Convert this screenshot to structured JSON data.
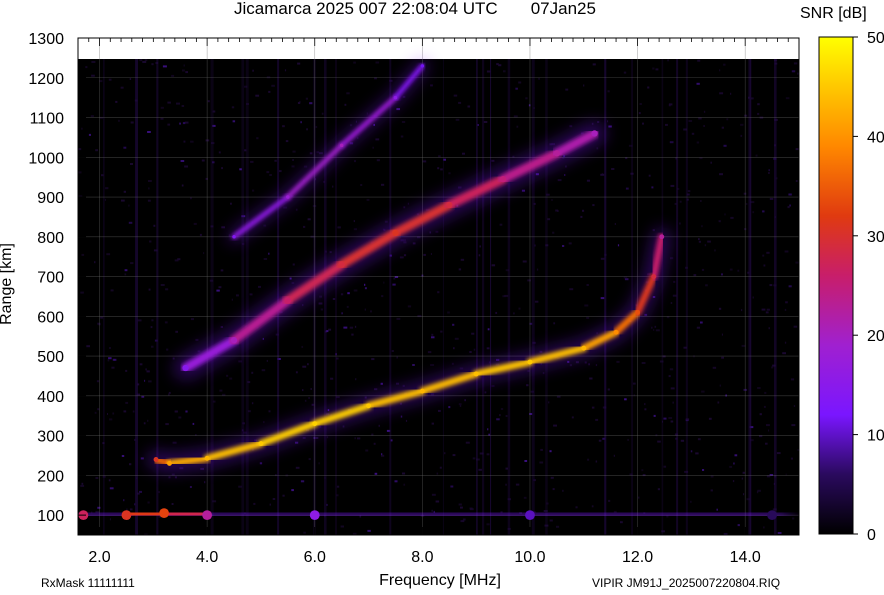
{
  "header": {
    "title": "Jicamarca 2025 007 22:08:04 UTC       07Jan25",
    "colorbar_title": "SNR [dB]",
    "rxmask": "RxMask 11111111",
    "source_file": "VIPIR  JM91J_2025007220804.RIQ"
  },
  "chart_data": {
    "type": "heatmap",
    "title": "Jicamarca 2025 007 22:08:04 UTC       07Jan25",
    "xlabel": "Frequency [MHz]",
    "ylabel": "Range [km]",
    "xlim": [
      1.6,
      15.0
    ],
    "ylim": [
      50,
      1300
    ],
    "x_ticks": [
      2.0,
      4.0,
      6.0,
      8.0,
      10.0,
      12.0,
      14.0
    ],
    "x_tick_labels": [
      "2.0",
      "4.0",
      "6.0",
      "8.0",
      "10.0",
      "12.0",
      "14.0"
    ],
    "y_ticks": [
      100,
      200,
      300,
      400,
      500,
      600,
      700,
      800,
      900,
      1000,
      1100,
      1200,
      1300
    ],
    "y_tick_labels": [
      "100",
      "200",
      "300",
      "400",
      "500",
      "600",
      "700",
      "800",
      "900",
      "1000",
      "1100",
      "1200",
      "1300"
    ],
    "grid": true,
    "colorbar": {
      "label": "SNR [dB]",
      "range": [
        0,
        50
      ],
      "ticks": [
        0,
        10,
        20,
        30,
        40,
        50
      ],
      "tick_labels": [
        "0",
        "10",
        "20",
        "30",
        "40",
        "50"
      ],
      "colormap": [
        "#000000",
        "#2a0a5e",
        "#7a16ff",
        "#a020d0",
        "#c81e6a",
        "#e03a10",
        "#ff8800",
        "#ffc800",
        "#ffff00"
      ]
    },
    "series": [
      {
        "name": "",
        "values": [
          {
            "x": 3.05,
            "y": 240,
            "snr": 30
          },
          {
            "x": 3.3,
            "y": 230,
            "snr": 40
          },
          {
            "x": 4.0,
            "y": 243,
            "snr": 42
          },
          {
            "x": 5.0,
            "y": 280,
            "snr": 44
          },
          {
            "x": 6.0,
            "y": 330,
            "snr": 45
          },
          {
            "x": 7.0,
            "y": 375,
            "snr": 44
          },
          {
            "x": 8.0,
            "y": 412,
            "snr": 42
          },
          {
            "x": 9.0,
            "y": 455,
            "snr": 43
          },
          {
            "x": 10.0,
            "y": 485,
            "snr": 44
          },
          {
            "x": 11.0,
            "y": 520,
            "snr": 42
          },
          {
            "x": 11.6,
            "y": 560,
            "snr": 38
          },
          {
            "x": 12.0,
            "y": 610,
            "snr": 33
          },
          {
            "x": 12.3,
            "y": 700,
            "snr": 28
          },
          {
            "x": 12.45,
            "y": 800,
            "snr": 22
          }
        ]
      },
      {
        "name": "",
        "values": [
          {
            "x": 3.6,
            "y": 470,
            "snr": 15
          },
          {
            "x": 4.5,
            "y": 540,
            "snr": 20
          },
          {
            "x": 5.5,
            "y": 640,
            "snr": 25
          },
          {
            "x": 6.5,
            "y": 730,
            "snr": 28
          },
          {
            "x": 7.5,
            "y": 810,
            "snr": 30
          },
          {
            "x": 8.5,
            "y": 880,
            "snr": 28
          },
          {
            "x": 9.5,
            "y": 945,
            "snr": 24
          },
          {
            "x": 10.5,
            "y": 1010,
            "snr": 22
          },
          {
            "x": 11.2,
            "y": 1060,
            "snr": 20
          }
        ]
      },
      {
        "name": "",
        "values": [
          {
            "x": 4.5,
            "y": 800,
            "snr": 14
          },
          {
            "x": 5.5,
            "y": 900,
            "snr": 18
          },
          {
            "x": 6.5,
            "y": 1030,
            "snr": 20
          },
          {
            "x": 7.5,
            "y": 1150,
            "snr": 16
          },
          {
            "x": 8.0,
            "y": 1230,
            "snr": 12
          }
        ]
      },
      {
        "name": "",
        "values": [
          {
            "x": 1.7,
            "y": 100,
            "snr": 26
          },
          {
            "x": 2.5,
            "y": 100,
            "snr": 30
          },
          {
            "x": 3.2,
            "y": 105,
            "snr": 32
          },
          {
            "x": 4.0,
            "y": 100,
            "snr": 22
          },
          {
            "x": 6.0,
            "y": 100,
            "snr": 16
          },
          {
            "x": 10.0,
            "y": 100,
            "snr": 10
          },
          {
            "x": 14.5,
            "y": 100,
            "snr": 6
          }
        ]
      }
    ]
  }
}
